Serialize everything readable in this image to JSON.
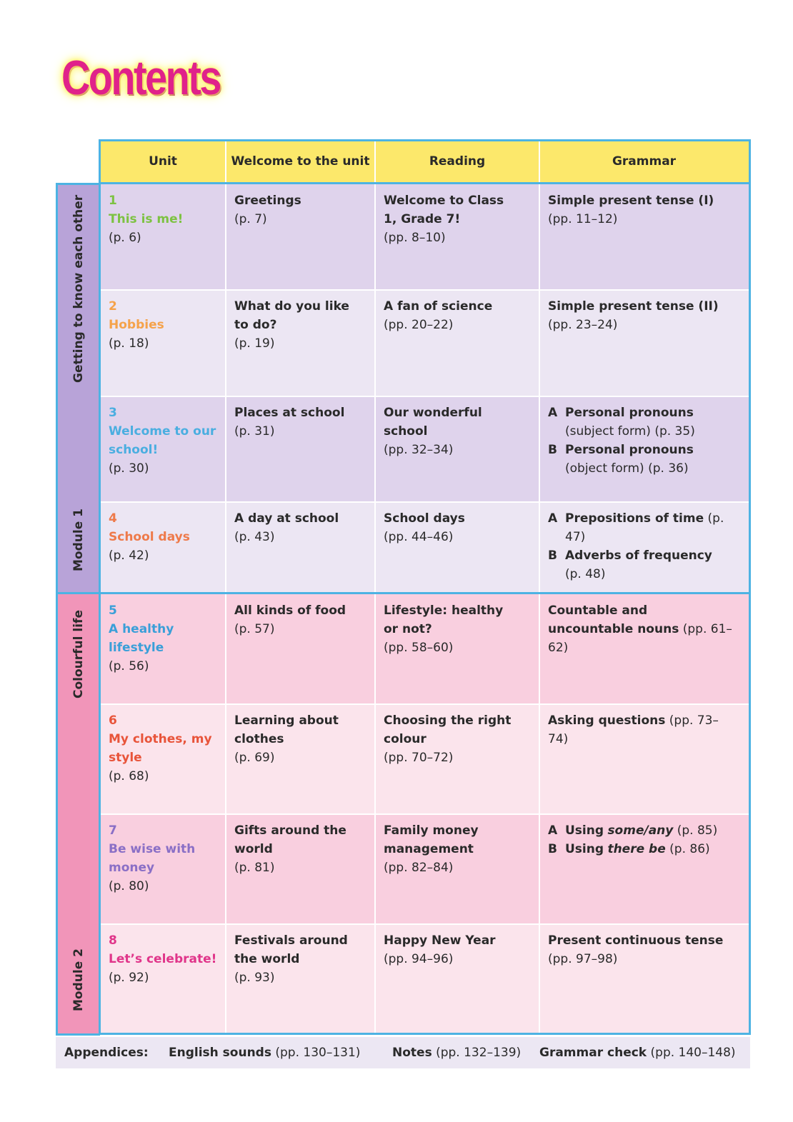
{
  "title": "Contents",
  "headers": [
    "Unit",
    "Welcome to the unit",
    "Reading",
    "Grammar"
  ],
  "modules": [
    {
      "name": "Module 1",
      "theme": "Getting to know each other"
    },
    {
      "name": "Module 2",
      "theme": "Colourful life"
    }
  ],
  "units": [
    {
      "num": "1",
      "title": "This is me!",
      "page": "(p. 6)",
      "color": "#7dc242",
      "welcome": "Greetings",
      "welcome_page": "(p. 7)",
      "reading": "Welcome to Class 1, Grade 7!",
      "reading_page": "(pp. 8–10)",
      "grammar": [
        {
          "letter": "",
          "text": "Simple present tense (I)",
          "page": "(pp. 11–12)"
        }
      ]
    },
    {
      "num": "2",
      "title": "Hobbies",
      "page": "(p. 18)",
      "color": "#f5a24a",
      "welcome": "What do you like to do?",
      "welcome_page": "(p. 19)",
      "reading": "A fan of science",
      "reading_page": "(pp. 20–22)",
      "grammar": [
        {
          "letter": "",
          "text": "Simple present tense (II)",
          "page": "(pp. 23–24)"
        }
      ]
    },
    {
      "num": "3",
      "title": "Welcome to our school!",
      "page": "(p. 30)",
      "color": "#4aaee0",
      "welcome": "Places at school",
      "welcome_page": "(p. 31)",
      "reading": "Our wonderful school",
      "reading_page": "(pp. 32–34)",
      "grammar": [
        {
          "letter": "A",
          "text": "Personal pronouns",
          "page": "(subject form) (p. 35)"
        },
        {
          "letter": "B",
          "text": "Personal pronouns",
          "page": "(object form) (p. 36)"
        }
      ]
    },
    {
      "num": "4",
      "title": "School days",
      "page": "(p. 42)",
      "color": "#ee7a4a",
      "welcome": "A day at school",
      "welcome_page": "(p. 43)",
      "reading": "School days",
      "reading_page": "(pp. 44–46)",
      "grammar": [
        {
          "letter": "A",
          "text": "Prepositions of time",
          "page": "(p. 47)"
        },
        {
          "letter": "B",
          "text": "Adverbs of frequency",
          "page": "(p. 48)"
        }
      ]
    },
    {
      "num": "5",
      "title": "A healthy lifestyle",
      "page": "(p. 56)",
      "color": "#3a9fd8",
      "welcome": "All kinds of food",
      "welcome_page": "(p. 57)",
      "reading": "Lifestyle: healthy or not?",
      "reading_page": "(pp. 58–60)",
      "grammar": [
        {
          "letter": "",
          "text": "Countable and uncountable nouns",
          "page": "(pp. 61–62)"
        }
      ]
    },
    {
      "num": "6",
      "title": "My clothes, my style",
      "page": "(p. 68)",
      "color": "#e8543a",
      "welcome": "Learning about clothes",
      "welcome_page": "(p. 69)",
      "reading": "Choosing the right colour",
      "reading_page": "(pp. 70–72)",
      "grammar": [
        {
          "letter": "",
          "text": "Asking questions",
          "page": "(pp. 73–74)"
        }
      ]
    },
    {
      "num": "7",
      "title": "Be wise with money",
      "page": "(p. 80)",
      "color": "#8a6fc6",
      "welcome": "Gifts around the world",
      "welcome_page": "(p. 81)",
      "reading": "Family money management",
      "reading_page": "(pp. 82–84)",
      "grammar": [
        {
          "letter": "A",
          "text": "Using",
          "italic": "some/any",
          "page": "(p. 85)"
        },
        {
          "letter": "B",
          "text": "Using",
          "italic": "there be",
          "page": "(p. 86)"
        }
      ]
    },
    {
      "num": "8",
      "title": "Let’s celebrate!",
      "page": "(p. 92)",
      "color": "#e0358a",
      "welcome": "Festivals around the world",
      "welcome_page": "(p. 93)",
      "reading": "Happy New Year",
      "reading_page": "(pp. 94–96)",
      "grammar": [
        {
          "letter": "",
          "text": "Present continuous tense",
          "page": "(pp. 97–98)"
        }
      ]
    }
  ],
  "appendices": {
    "label": "Appendices:",
    "items": [
      {
        "name": "English sounds",
        "page": "(pp. 130–131)"
      },
      {
        "name": "Notes",
        "page": "(pp. 132–139)"
      },
      {
        "name": "Grammar check",
        "page": "(pp. 140–148)"
      }
    ]
  },
  "colors": {
    "header": "#fce86b",
    "border": "#4db3e3",
    "module1_side": "#b8a3d8",
    "module1_dark": "#dfd3ec",
    "module1_light": "#ece6f3",
    "module2_side": "#f195b9",
    "module2_dark": "#f9cfdf",
    "module2_light": "#fbe4ec"
  }
}
